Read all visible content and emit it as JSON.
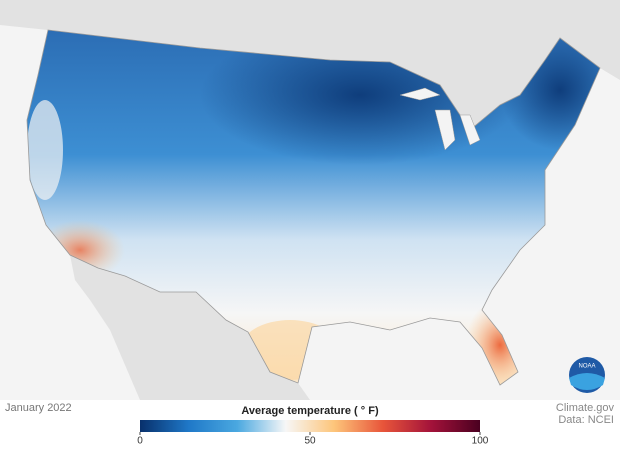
{
  "date": "January 2022",
  "credit": "Climate.gov",
  "source": "Data: NCEI",
  "logo": "NOAA",
  "colorbar": {
    "title": "Average temperature ( ° F)",
    "range": [
      0,
      100
    ],
    "ticks": [
      0,
      50,
      100
    ],
    "colors": [
      "#08306b",
      "#1f78c8",
      "#4aa8e0",
      "#f7f7f7",
      "#fdc57a",
      "#e8553a",
      "#a3123a",
      "#4a0020"
    ]
  }
}
